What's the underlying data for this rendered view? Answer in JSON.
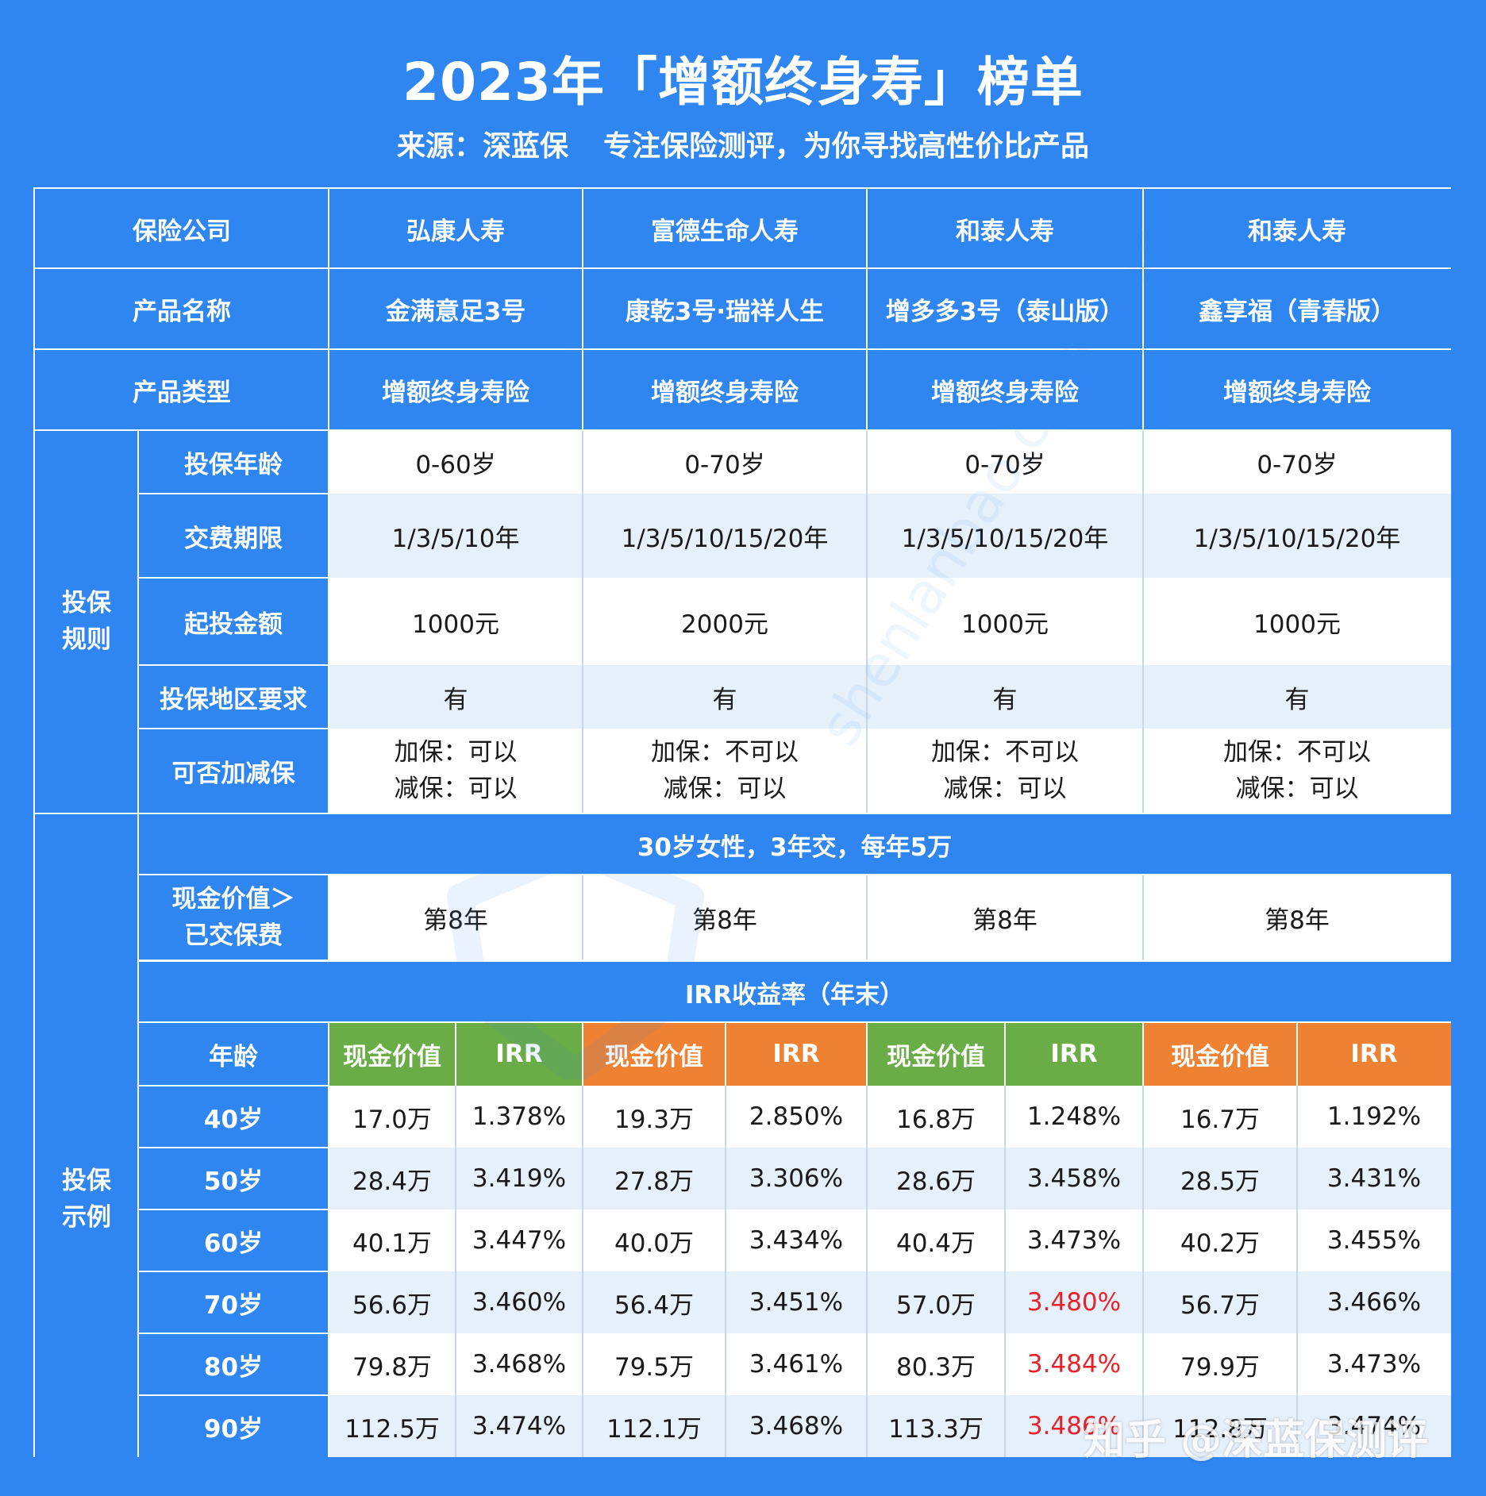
{
  "title": "2023年「增额终身寿」榜单",
  "subtitle_source": "来源：深蓝保",
  "subtitle_slogan": "专注保险测评，为你寻找高性价比产品",
  "labels": {
    "company": "保险公司",
    "product_name": "产品名称",
    "product_type": "产品类型",
    "rules_group": "投保\n规则",
    "age": "投保年龄",
    "pay_period": "交费期限",
    "min_amount": "起投金额",
    "region": "投保地区要求",
    "adjust": "可否加减保",
    "example_group": "投保\n示例",
    "scenario": "30岁女性，3年交，每年5万",
    "cv_gt_paid": "现金价值＞\n已交保费",
    "irr_band": "IRR收益率（年末）",
    "age_col": "年龄",
    "cv_col": "现金价值",
    "irr_col": "IRR"
  },
  "products": [
    {
      "company": "弘康人寿",
      "name": "金满意足3号",
      "type": "增额终身寿险",
      "age": "0-60岁",
      "pay": "1/3/5/10年",
      "min": "1000元",
      "region": "有",
      "add": "加保：可以",
      "reduce": "减保：可以",
      "breakeven": "第8年"
    },
    {
      "company": "富德生命人寿",
      "name": "康乾3号·瑞祥人生",
      "type": "增额终身寿险",
      "age": "0-70岁",
      "pay": "1/3/5/10/15/20年",
      "min": "2000元",
      "region": "有",
      "add": "加保：不可以",
      "reduce": "减保：可以",
      "breakeven": "第8年"
    },
    {
      "company": "和泰人寿",
      "name": "增多多3号（泰山版）",
      "type": "增额终身寿险",
      "age": "0-70岁",
      "pay": "1/3/5/10/15/20年",
      "min": "1000元",
      "region": "有",
      "add": "加保：不可以",
      "reduce": "减保：可以",
      "breakeven": "第8年"
    },
    {
      "company": "和泰人寿",
      "name": "鑫享福（青春版）",
      "type": "增额终身寿险",
      "age": "0-70岁",
      "pay": "1/3/5/10/15/20年",
      "min": "1000元",
      "region": "有",
      "add": "加保：不可以",
      "reduce": "减保：可以",
      "breakeven": "第8年"
    }
  ],
  "rows": [
    {
      "age": "40岁",
      "v": [
        "17.0万",
        "1.378%",
        "19.3万",
        "2.850%",
        "16.8万",
        "1.248%",
        "16.7万",
        "1.192%"
      ]
    },
    {
      "age": "50岁",
      "v": [
        "28.4万",
        "3.419%",
        "27.8万",
        "3.306%",
        "28.6万",
        "3.458%",
        "28.5万",
        "3.431%"
      ]
    },
    {
      "age": "60岁",
      "v": [
        "40.1万",
        "3.447%",
        "40.0万",
        "3.434%",
        "40.4万",
        "3.473%",
        "40.2万",
        "3.455%"
      ]
    },
    {
      "age": "70岁",
      "v": [
        "56.6万",
        "3.460%",
        "56.4万",
        "3.451%",
        "57.0万",
        "3.480%",
        "56.7万",
        "3.466%"
      ]
    },
    {
      "age": "80岁",
      "v": [
        "79.8万",
        "3.468%",
        "79.5万",
        "3.461%",
        "80.3万",
        "3.484%",
        "79.9万",
        "3.473%"
      ]
    },
    {
      "age": "90岁",
      "v": [
        "112.5万",
        "3.474%",
        "112.1万",
        "3.468%",
        "113.3万",
        "3.486%",
        "112.8万",
        "3.474%"
      ]
    }
  ],
  "highlight_color": "#e8222a",
  "watermark": "shenlanbao.com 专业 | 诚信",
  "footer": "知乎 @深蓝保测评"
}
